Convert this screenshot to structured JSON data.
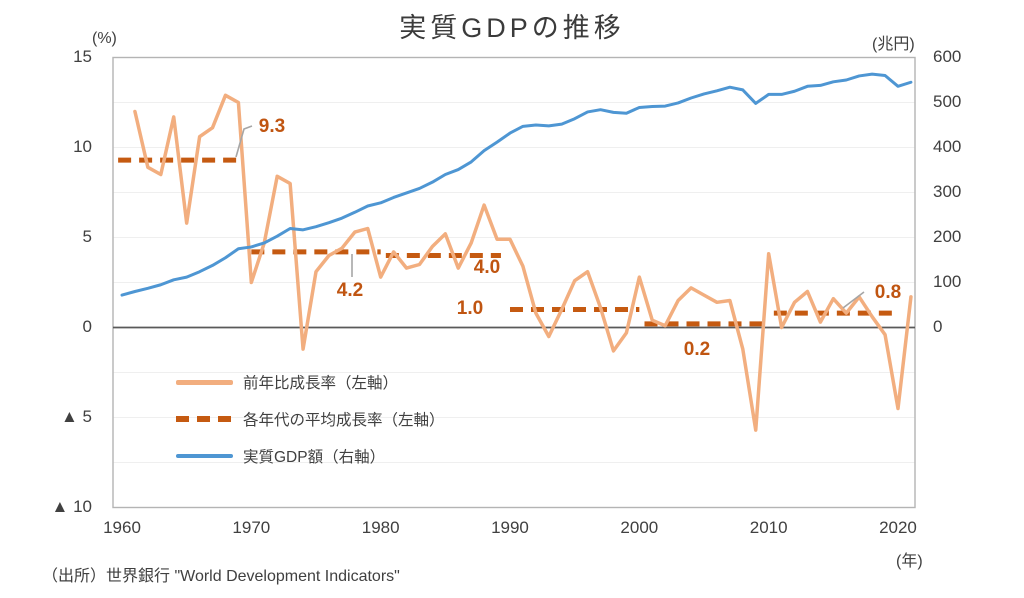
{
  "title": "実質GDPの推移",
  "source": "（出所）世界銀行 \"World Development Indicators\"",
  "colors": {
    "growth_line": "#F2AE7F",
    "decade_average_line": "#C55A11",
    "gdp_line": "#4E96D3",
    "zero_line": "#595959",
    "annotation_text": "#C05511",
    "leader_line": "#A6A6A6",
    "plot_border": "#B4B4B4",
    "gridline": "#EFEFEF"
  },
  "legend": {
    "items": [
      {
        "label": "前年比成長率（左軸）",
        "style": "solid",
        "series": "growth_line"
      },
      {
        "label": "各年代の平均成長率（左軸）",
        "style": "dashed",
        "series": "decade_average_line"
      },
      {
        "label": "実質GDP額（右軸）",
        "style": "solid",
        "series": "gdp_line"
      }
    ]
  },
  "chart_data": {
    "type": "line",
    "title": "実質GDPの推移",
    "source": "（出所）世界銀行 \"World Development Indicators\"",
    "grid": "faint horizontal gridlines, dark zero line",
    "legend_position": "inside-bottom-left",
    "x_axis": {
      "label": "(年)",
      "ticks": [
        1960,
        1970,
        1980,
        1990,
        2000,
        2010,
        2020
      ],
      "range": [
        1959.3,
        2021.3
      ]
    },
    "left_axis": {
      "label": "(%)",
      "note": "▲ marks negative values",
      "range": [
        -10,
        15
      ],
      "ticks": [
        {
          "value": 15,
          "label": "15"
        },
        {
          "value": 10,
          "label": "10"
        },
        {
          "value": 5,
          "label": "5"
        },
        {
          "value": 0,
          "label": "0"
        },
        {
          "value": -5,
          "label": "▲ 5"
        },
        {
          "value": -10,
          "label": "▲ 10"
        }
      ]
    },
    "right_axis": {
      "label": "(兆円)",
      "labelled_range": [
        0,
        600
      ],
      "ticks": [
        {
          "value": 600,
          "label": "600"
        },
        {
          "value": 500,
          "label": "500"
        },
        {
          "value": 400,
          "label": "400"
        },
        {
          "value": 300,
          "label": "300"
        },
        {
          "value": 200,
          "label": "200"
        },
        {
          "value": 100,
          "label": "100"
        },
        {
          "value": 0,
          "label": "0"
        }
      ]
    },
    "series": [
      {
        "name": "前年比成長率（左軸）",
        "axis": "left",
        "style": "solid",
        "color": "#F2AE7F",
        "year_start": 1961,
        "values": [
          12.0,
          8.9,
          8.5,
          11.7,
          5.8,
          10.6,
          11.1,
          12.9,
          12.5,
          2.5,
          4.7,
          8.4,
          8.0,
          -1.2,
          3.1,
          4.0,
          4.4,
          5.3,
          5.5,
          2.8,
          4.2,
          3.3,
          3.5,
          4.5,
          5.2,
          3.3,
          4.7,
          6.8,
          4.9,
          4.9,
          3.4,
          0.8,
          -0.5,
          1.0,
          2.6,
          3.1,
          1.1,
          -1.3,
          -0.3,
          2.8,
          0.4,
          0.1,
          1.5,
          2.2,
          1.8,
          1.4,
          1.5,
          -1.2,
          -5.7,
          4.1,
          0.0,
          1.4,
          2.0,
          0.3,
          1.6,
          0.8,
          1.7,
          0.6,
          -0.4,
          -4.5,
          1.7
        ]
      },
      {
        "name": "各年代の平均成長率（左軸）",
        "axis": "left",
        "style": "dashed",
        "color": "#C55A11",
        "segments": [
          {
            "from": 1959.7,
            "to": 1969.2,
            "value": 9.3,
            "label": "9.3"
          },
          {
            "from": 1970.0,
            "to": 1980.0,
            "value": 4.2,
            "label": "4.2"
          },
          {
            "from": 1980.4,
            "to": 1989.3,
            "value": 4.0,
            "label": "4.0"
          },
          {
            "from": 1990.0,
            "to": 2000.0,
            "value": 1.0,
            "label": "1.0"
          },
          {
            "from": 2000.4,
            "to": 2010.0,
            "value": 0.2,
            "label": "0.2"
          },
          {
            "from": 2010.4,
            "to": 2020.0,
            "value": 0.8,
            "label": "0.8"
          }
        ]
      },
      {
        "name": "実質GDP額（右軸）",
        "axis": "right",
        "style": "solid",
        "color": "#4E96D3",
        "year_start": 1960,
        "values": [
          72,
          80,
          87,
          95,
          106,
          112,
          124,
          138,
          155,
          175,
          179,
          188,
          203,
          220,
          217,
          224,
          233,
          243,
          256,
          270,
          277,
          289,
          299,
          309,
          323,
          340,
          351,
          368,
          393,
          412,
          432,
          447,
          450,
          448,
          452,
          464,
          479,
          484,
          478,
          476,
          489,
          491,
          492,
          499,
          510,
          519,
          526,
          534,
          528,
          498,
          518,
          518,
          525,
          536,
          538,
          546,
          550,
          559,
          563,
          560,
          536,
          545
        ]
      }
    ]
  }
}
